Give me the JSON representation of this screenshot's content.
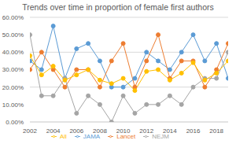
{
  "chart_data": {
    "type": "line",
    "title": "Trends over time in proportion of female first authors",
    "x": [
      2002,
      2003,
      2004,
      2005,
      2006,
      2007,
      2008,
      2009,
      2010,
      2011,
      2012,
      2013,
      2014,
      2015,
      2016,
      2017,
      2018,
      2019
    ],
    "xlim": [
      2002,
      2019
    ],
    "xticks": [
      2002,
      2004,
      2006,
      2008,
      2010,
      2012,
      2014,
      2016,
      2018
    ],
    "ylim": [
      0,
      60
    ],
    "yticks": [
      {
        "value": 0,
        "label": "0.00%"
      },
      {
        "value": 10,
        "label": "10.00%"
      },
      {
        "value": 20,
        "label": "20.00%"
      },
      {
        "value": 30,
        "label": "30.00%"
      },
      {
        "value": 40,
        "label": "40.00%"
      },
      {
        "value": 50,
        "label": "50.00%"
      },
      {
        "value": 60,
        "label": "60.00%"
      }
    ],
    "grid": true,
    "legend": "bottom",
    "marker": "circle",
    "series": [
      {
        "name": "JAMA",
        "color": "#5b9bd5",
        "values": [
          35,
          30,
          55,
          25,
          42,
          45,
          35,
          20,
          20,
          25,
          40,
          35,
          30,
          40,
          50,
          35,
          45,
          25
        ]
      },
      {
        "name": "Lancet",
        "color": "#ed7d31",
        "values": [
          30,
          40,
          30,
          20,
          30,
          30,
          20,
          35,
          45,
          20,
          35,
          50,
          25,
          35,
          35,
          20,
          30,
          45
        ]
      },
      {
        "name": "NEJM",
        "color": "#a5a5a5",
        "values": [
          50,
          15,
          15,
          25,
          5,
          15,
          10,
          0,
          15,
          5,
          10,
          10,
          15,
          10,
          20,
          25,
          25,
          40
        ]
      },
      {
        "name": "All",
        "color": "#ffc000",
        "values": [
          38,
          27,
          32,
          24,
          27,
          30,
          24,
          22,
          25,
          18,
          29,
          30,
          24,
          28,
          34,
          24,
          28,
          35
        ]
      }
    ]
  }
}
